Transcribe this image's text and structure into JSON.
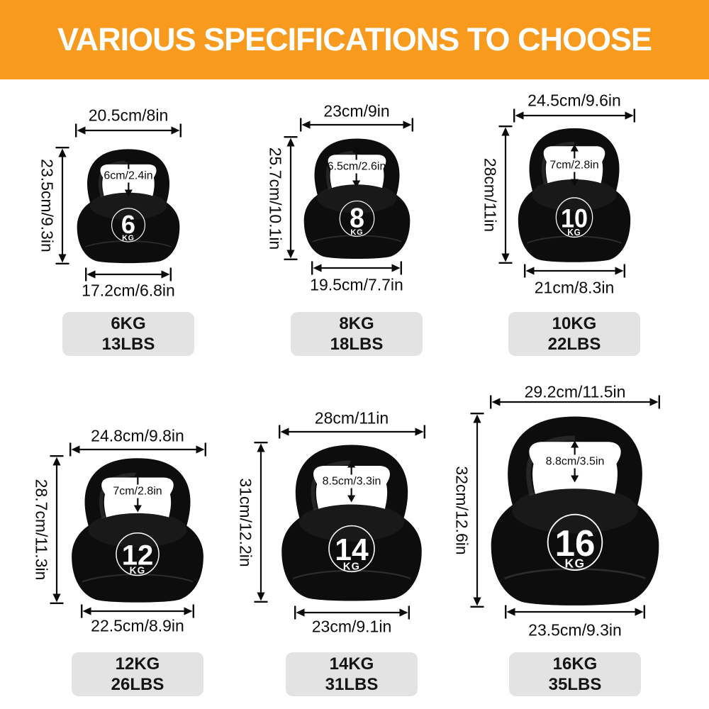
{
  "header": {
    "title": "VARIOUS SPECIFICATIONS TO CHOOSE"
  },
  "colors": {
    "banner_bg": "#F79A1D",
    "banner_text": "#FFFFFF",
    "badge_bg": "#E3E3E3",
    "bell_black": "#0D0D0D",
    "dimension_ink": "#0B0B0B"
  },
  "kettlebells": [
    {
      "weight_number": "6",
      "weight_unit": "KG",
      "top_width": "20.5cm/8in",
      "height": "23.5cm/9.3in",
      "handle_gap": "6cm/2.4in",
      "bottom_width": "17.2cm/6.8in",
      "badge_kg": "6KG",
      "badge_lbs": "13LBS"
    },
    {
      "weight_number": "8",
      "weight_unit": "KG",
      "top_width": "23cm/9in",
      "height": "25.7cm/10.1in",
      "handle_gap": "6.5cm/2.6in",
      "bottom_width": "19.5cm/7.7in",
      "badge_kg": "8KG",
      "badge_lbs": "18LBS"
    },
    {
      "weight_number": "10",
      "weight_unit": "KG",
      "top_width": "24.5cm/9.6in",
      "height": "28cm/11in",
      "handle_gap": "7cm/2.8in",
      "bottom_width": "21cm/8.3in",
      "badge_kg": "10KG",
      "badge_lbs": "22LBS"
    },
    {
      "weight_number": "12",
      "weight_unit": "KG",
      "top_width": "24.8cm/9.8in",
      "height": "28.7cm/11.3in",
      "handle_gap": "7cm/2.8in",
      "bottom_width": "22.5cm/8.9in",
      "badge_kg": "12KG",
      "badge_lbs": "26LBS"
    },
    {
      "weight_number": "14",
      "weight_unit": "KG",
      "top_width": "28cm/11in",
      "height": "31cm/12.2in",
      "handle_gap": "8.5cm/3.3in",
      "bottom_width": "23cm/9.1in",
      "badge_kg": "14KG",
      "badge_lbs": "31LBS"
    },
    {
      "weight_number": "16",
      "weight_unit": "KG",
      "top_width": "29.2cm/11.5in",
      "height": "32cm/12.6in",
      "handle_gap": "8.8cm/3.5in",
      "bottom_width": "23.5cm/9.3in",
      "badge_kg": "16KG",
      "badge_lbs": "35LBS"
    }
  ]
}
